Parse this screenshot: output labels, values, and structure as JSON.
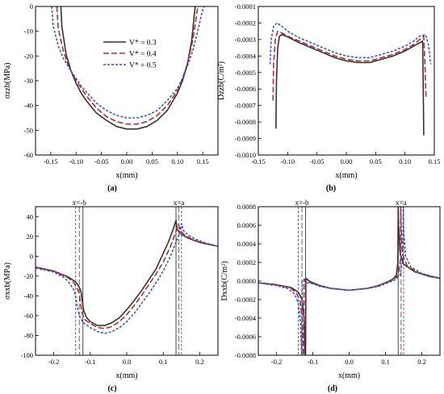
{
  "legend": [
    {
      "label": "V* = 0.3",
      "color": "#333333",
      "dash": ""
    },
    {
      "label": "V* = 0.4",
      "color": "#b0302a",
      "dash": "7,3"
    },
    {
      "label": "V* = 0.5",
      "color": "#2f55d4",
      "dash": "3,2"
    }
  ],
  "chart_data": [
    {
      "id": "a",
      "type": "line",
      "panel_label": "(a)",
      "xlabel": "x(mm)",
      "ylabel": "σzzb(MPa)",
      "xlim": [
        -0.18,
        0.18
      ],
      "ylim": [
        -60,
        0
      ],
      "xticks": [
        -0.15,
        -0.1,
        -0.05,
        0.0,
        0.05,
        0.1,
        0.15
      ],
      "xtick_labels": [
        "-0.15",
        "-0.10",
        "-0.05",
        "0.00",
        "0.05",
        "0.10",
        "0.15"
      ],
      "yticks": [
        0,
        -10,
        -20,
        -30,
        -40,
        -50,
        -60
      ],
      "ytick_labels": [
        "0",
        "-10",
        "-20",
        "-30",
        "-40",
        "-50",
        "-60"
      ],
      "series": [
        {
          "name": "V* = 0.3",
          "color": "#333333",
          "dash": "",
          "x": [
            -0.13,
            -0.128,
            -0.12,
            -0.11,
            -0.1,
            -0.09,
            -0.08,
            -0.06,
            -0.04,
            -0.02,
            0.0,
            0.02,
            0.04,
            0.06,
            0.08,
            0.1,
            0.11,
            0.12,
            0.128,
            0.132,
            0.135
          ],
          "y": [
            0,
            -8,
            -19,
            -26,
            -31,
            -35,
            -38,
            -43,
            -46,
            -48.5,
            -49.5,
            -49.5,
            -48.5,
            -46,
            -42,
            -35,
            -30,
            -23,
            -14,
            -6,
            0
          ]
        },
        {
          "name": "V* = 0.4",
          "color": "#b0302a",
          "dash": "7,3",
          "x": [
            -0.138,
            -0.135,
            -0.125,
            -0.115,
            -0.1,
            -0.09,
            -0.08,
            -0.06,
            -0.04,
            -0.02,
            0.0,
            0.02,
            0.04,
            0.06,
            0.08,
            0.1,
            0.11,
            0.12,
            0.13,
            0.136,
            0.14
          ],
          "y": [
            0,
            -9,
            -18,
            -24,
            -30,
            -33,
            -36,
            -41,
            -44.5,
            -46.5,
            -47.5,
            -47.5,
            -46.5,
            -44,
            -40,
            -34,
            -29,
            -23,
            -14,
            -6,
            0
          ]
        },
        {
          "name": "V* = 0.5",
          "color": "#2f55d4",
          "dash": "3,2",
          "x": [
            -0.148,
            -0.145,
            -0.135,
            -0.125,
            -0.11,
            -0.1,
            -0.09,
            -0.08,
            -0.06,
            -0.04,
            -0.02,
            0.0,
            0.02,
            0.04,
            0.06,
            0.08,
            0.1,
            0.11,
            0.12,
            0.13,
            0.14,
            0.148,
            0.152
          ],
          "y": [
            0,
            -8,
            -16,
            -21,
            -26,
            -29,
            -32,
            -34.5,
            -39,
            -42,
            -44,
            -45,
            -45,
            -44,
            -42,
            -38,
            -33,
            -29,
            -24,
            -18,
            -10,
            -3,
            0
          ]
        }
      ]
    },
    {
      "id": "b",
      "type": "line",
      "panel_label": "(b)",
      "xlabel": "x(mm)",
      "ylabel": "Dzzb(C/m²)",
      "xlim": [
        -0.15,
        0.15
      ],
      "ylim": [
        -0.001,
        -0.0001
      ],
      "xticks": [
        -0.15,
        -0.1,
        -0.05,
        0.0,
        0.05,
        0.1,
        0.15
      ],
      "xtick_labels": [
        "-0.15",
        "-0.10",
        "-0.05",
        "0.00",
        "0.05",
        "0.10",
        "0.15"
      ],
      "yticks": [
        -0.0001,
        -0.0002,
        -0.0003,
        -0.0004,
        -0.0005,
        -0.0006,
        -0.0007,
        -0.0008,
        -0.0009,
        -0.001
      ],
      "ytick_labels": [
        "-0.0001",
        "-0.0002",
        "-0.0003",
        "-0.0004",
        "-0.0005",
        "-0.0006",
        "-0.0007",
        "-0.0008",
        "-0.0009",
        "-0.0010"
      ],
      "series": [
        {
          "name": "V* = 0.3",
          "color": "#333333",
          "dash": "",
          "x": [
            -0.12,
            -0.119,
            -0.117,
            -0.114,
            -0.11,
            -0.1,
            -0.08,
            -0.06,
            -0.04,
            -0.02,
            0.0,
            0.02,
            0.04,
            0.06,
            0.08,
            0.1,
            0.115,
            0.125,
            0.13,
            0.131,
            0.132
          ],
          "y": [
            -0.00084,
            -0.00055,
            -0.00035,
            -0.00028,
            -0.00027,
            -0.000285,
            -0.00032,
            -0.00035,
            -0.00038,
            -0.00041,
            -0.00043,
            -0.00044,
            -0.00044,
            -0.00042,
            -0.0004,
            -0.00037,
            -0.00034,
            -0.00032,
            -0.00031,
            -0.00055,
            -0.00088
          ]
        },
        {
          "name": "V* = 0.4",
          "color": "#b0302a",
          "dash": "7,3",
          "x": [
            -0.125,
            -0.124,
            -0.121,
            -0.117,
            -0.11,
            -0.1,
            -0.08,
            -0.06,
            -0.04,
            -0.02,
            0.0,
            0.02,
            0.04,
            0.06,
            0.08,
            0.1,
            0.115,
            0.125,
            0.132,
            0.134,
            0.136
          ],
          "y": [
            -0.00067,
            -0.00045,
            -0.0003,
            -0.00025,
            -0.00026,
            -0.00028,
            -0.00031,
            -0.00034,
            -0.00037,
            -0.0004,
            -0.00042,
            -0.00043,
            -0.00043,
            -0.00041,
            -0.00039,
            -0.00036,
            -0.00033,
            -0.0003,
            -0.00028,
            -0.00045,
            -0.00066
          ]
        },
        {
          "name": "V* = 0.5",
          "color": "#2f55d4",
          "dash": "3,2",
          "x": [
            -0.13,
            -0.128,
            -0.124,
            -0.118,
            -0.11,
            -0.1,
            -0.08,
            -0.06,
            -0.04,
            -0.02,
            0.0,
            0.02,
            0.04,
            0.06,
            0.08,
            0.1,
            0.115,
            0.125,
            0.135,
            0.14,
            0.144
          ],
          "y": [
            -0.00045,
            -0.0003,
            -0.00022,
            -0.0002,
            -0.00022,
            -0.00025,
            -0.00029,
            -0.00032,
            -0.00035,
            -0.00038,
            -0.0004,
            -0.00041,
            -0.00041,
            -0.00039,
            -0.00037,
            -0.00034,
            -0.00031,
            -0.00028,
            -0.00027,
            -0.00033,
            -0.00045
          ]
        }
      ]
    },
    {
      "id": "c",
      "type": "line",
      "panel_label": "(c)",
      "xlabel": "x(mm)",
      "ylabel": "σxxb(MPa)",
      "xlim": [
        -0.25,
        0.25
      ],
      "ylim": [
        -100,
        50
      ],
      "xticks": [
        -0.2,
        -0.1,
        0.0,
        0.1,
        0.2
      ],
      "xtick_labels": [
        "-0.2",
        "-0.1",
        "0.0",
        "0.1",
        "0.2"
      ],
      "yticks": [
        40,
        20,
        0,
        -20,
        -40,
        -60,
        -80,
        -100
      ],
      "ytick_labels": [
        "40",
        "20",
        "0",
        "-20",
        "-40",
        "-60",
        "-80",
        "-100"
      ],
      "vlines": [
        {
          "label": "x=-b",
          "xs": [
            -0.12,
            -0.13,
            -0.14
          ]
        },
        {
          "label": "x=a",
          "xs": [
            0.135,
            0.143,
            0.15
          ]
        }
      ],
      "series": [
        {
          "name": "V* = 0.3",
          "color": "#333333",
          "dash": "",
          "x": [
            -0.25,
            -0.2,
            -0.16,
            -0.14,
            -0.13,
            -0.125,
            -0.122,
            -0.118,
            -0.11,
            -0.1,
            -0.08,
            -0.06,
            -0.04,
            -0.02,
            0.0,
            0.02,
            0.04,
            0.06,
            0.08,
            0.1,
            0.115,
            0.125,
            0.132,
            0.135,
            0.138,
            0.15,
            0.17,
            0.2,
            0.25
          ],
          "y": [
            -11,
            -15,
            -21,
            -26,
            -31,
            -36,
            -45,
            -55,
            -62,
            -66,
            -70,
            -70,
            -67,
            -62,
            -54,
            -45,
            -35,
            -24,
            -13,
            3,
            15,
            25,
            33,
            36,
            27,
            22,
            18,
            14,
            10
          ]
        },
        {
          "name": "V* = 0.4",
          "color": "#b0302a",
          "dash": "7,3",
          "x": [
            -0.25,
            -0.2,
            -0.16,
            -0.145,
            -0.135,
            -0.13,
            -0.127,
            -0.123,
            -0.115,
            -0.1,
            -0.08,
            -0.06,
            -0.04,
            -0.02,
            0.0,
            0.02,
            0.04,
            0.06,
            0.08,
            0.1,
            0.12,
            0.13,
            0.138,
            0.142,
            0.146,
            0.16,
            0.18,
            0.21,
            0.25
          ],
          "y": [
            -11,
            -15,
            -22,
            -27,
            -33,
            -38,
            -47,
            -57,
            -64,
            -68,
            -72,
            -73,
            -71,
            -66,
            -59,
            -50,
            -40,
            -29,
            -18,
            -6,
            10,
            20,
            28,
            32,
            26,
            21,
            17,
            13,
            10
          ]
        },
        {
          "name": "V* = 0.5",
          "color": "#2f55d4",
          "dash": "3,2",
          "x": [
            -0.25,
            -0.2,
            -0.17,
            -0.155,
            -0.145,
            -0.14,
            -0.136,
            -0.13,
            -0.12,
            -0.1,
            -0.08,
            -0.06,
            -0.04,
            -0.02,
            0.0,
            0.02,
            0.04,
            0.06,
            0.08,
            0.1,
            0.12,
            0.135,
            0.145,
            0.15,
            0.155,
            0.17,
            0.19,
            0.22,
            0.25
          ],
          "y": [
            -12,
            -16,
            -22,
            -28,
            -34,
            -40,
            -50,
            -60,
            -67,
            -72,
            -76,
            -78,
            -76,
            -72,
            -66,
            -58,
            -48,
            -38,
            -27,
            -15,
            0,
            14,
            23,
            33,
            26,
            21,
            17,
            13,
            10
          ]
        }
      ]
    },
    {
      "id": "d",
      "type": "line",
      "panel_label": "(d)",
      "xlabel": "x(mm)",
      "ylabel": "Dxxb(C/m²)",
      "xlim": [
        -0.25,
        0.25
      ],
      "ylim": [
        -0.0008,
        0.0008
      ],
      "xticks": [
        -0.2,
        -0.1,
        0.0,
        0.1,
        0.2
      ],
      "xtick_labels": [
        "-0.2",
        "-0.1",
        "0.0",
        "0.1",
        "0.2"
      ],
      "yticks": [
        0.0008,
        0.0006,
        0.0004,
        0.0002,
        0.0,
        -0.0002,
        -0.0004,
        -0.0006,
        -0.0008
      ],
      "ytick_labels": [
        "0.0008",
        "0.0006",
        "0.0004",
        "0.0002",
        "0.0000",
        "-0.0002",
        "-0.0004",
        "-0.0006",
        "-0.0008"
      ],
      "vlines": [
        {
          "label": "x=-b",
          "xs": [
            -0.12,
            -0.13,
            -0.14
          ]
        },
        {
          "label": "x=a",
          "xs": [
            0.135,
            0.143,
            0.15
          ]
        }
      ],
      "series": [
        {
          "name": "V* = 0.3",
          "color": "#333333",
          "dash": "",
          "x": [
            -0.25,
            -0.2,
            -0.16,
            -0.14,
            -0.13,
            -0.124,
            -0.121,
            -0.12,
            -0.119,
            -0.116,
            -0.11,
            -0.1,
            -0.08,
            -0.05,
            0.0,
            0.05,
            0.08,
            0.1,
            0.12,
            0.13,
            0.134,
            0.135,
            0.136,
            0.14,
            0.15,
            0.18,
            0.22,
            0.25
          ],
          "y": [
            -2e-05,
            -4e-05,
            -7e-05,
            -0.00012,
            -0.0002,
            -0.0004,
            -0.0008,
            -0.0008,
            3e-05,
            2e-05,
            0.0,
            -2e-05,
            -5e-05,
            -8e-05,
            -0.0001,
            -8e-05,
            -5e-05,
            -2e-05,
            2e-05,
            6e-05,
            0.0002,
            0.0008,
            0.0006,
            0.0003,
            0.00018,
            0.0001,
            5e-05,
            3e-05
          ]
        },
        {
          "name": "V* = 0.4",
          "color": "#b0302a",
          "dash": "7,3",
          "x": [
            -0.25,
            -0.2,
            -0.16,
            -0.145,
            -0.135,
            -0.129,
            -0.126,
            -0.125,
            -0.124,
            -0.12,
            -0.11,
            -0.1,
            -0.08,
            -0.05,
            0.0,
            0.05,
            0.08,
            0.1,
            0.12,
            0.135,
            0.141,
            0.142,
            0.143,
            0.147,
            0.16,
            0.19,
            0.225,
            0.25
          ],
          "y": [
            -2e-05,
            -4e-05,
            -8e-05,
            -0.00013,
            -0.00022,
            -0.00042,
            -0.0008,
            -0.0008,
            2e-05,
            1e-05,
            -1e-05,
            -3e-05,
            -5e-05,
            -8e-05,
            -0.0001,
            -8e-05,
            -5e-05,
            -2e-05,
            1e-05,
            6e-05,
            0.00022,
            0.0008,
            0.00058,
            0.00029,
            0.00016,
            9e-05,
            5e-05,
            3e-05
          ]
        },
        {
          "name": "V* = 0.5",
          "color": "#2f55d4",
          "dash": "3,2",
          "x": [
            -0.25,
            -0.2,
            -0.17,
            -0.15,
            -0.14,
            -0.134,
            -0.131,
            -0.13,
            -0.129,
            -0.125,
            -0.115,
            -0.1,
            -0.08,
            -0.05,
            0.0,
            0.05,
            0.08,
            0.1,
            0.125,
            0.14,
            0.148,
            0.149,
            0.15,
            0.155,
            0.17,
            0.2,
            0.23,
            0.25
          ],
          "y": [
            -2e-05,
            -5e-05,
            -8e-05,
            -0.00014,
            -0.00024,
            -0.00044,
            -0.0008,
            -0.0008,
            1e-05,
            0.0,
            -2e-05,
            -3e-05,
            -6e-05,
            -8e-05,
            -0.0001,
            -8e-05,
            -6e-05,
            -3e-05,
            1e-05,
            6e-05,
            0.00024,
            0.0008,
            0.00055,
            0.00027,
            0.00015,
            8e-05,
            5e-05,
            3e-05
          ]
        }
      ]
    }
  ]
}
